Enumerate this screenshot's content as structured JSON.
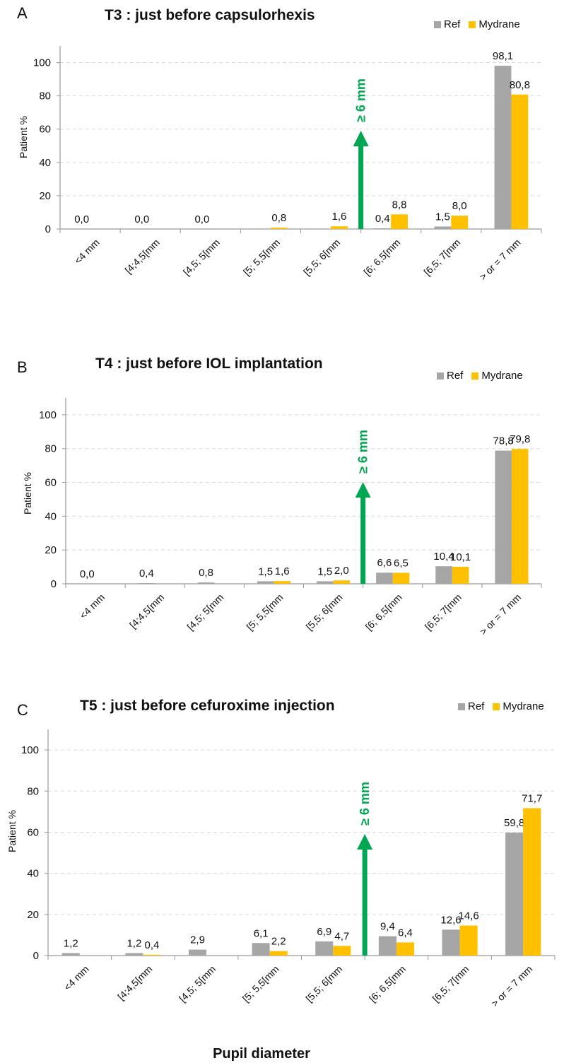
{
  "colors": {
    "ref": "#a6a6a6",
    "mydrane": "#ffc000",
    "arrow": "#00a651",
    "grid": "#d9d9d9",
    "axis": "#999999"
  },
  "legend": {
    "ref": "Ref",
    "mydrane": "Mydrane"
  },
  "ylabel": "Patient %",
  "xlabel": "Pupil diameter",
  "arrow_label": "≥ 6 mm",
  "chart_data": [
    {
      "type": "bar",
      "panel": "A",
      "title": "T3 : just before capsulorhexis",
      "categories": [
        "<4 mm",
        "[4;4,5[mm",
        "[4,5; 5[mm",
        "[5; 5,5[mm",
        "[5,5; 6[mm",
        "[6; 6,5[mm",
        "[6,5; 7[mm",
        "> or = 7 mm"
      ],
      "series": [
        {
          "name": "Ref",
          "values": [
            0.0,
            0.0,
            0.0,
            0.0,
            0.0,
            0.4,
            1.5,
            98.1
          ],
          "labels": [
            "0,0",
            "0,0",
            "0,0",
            "",
            "",
            "0,4",
            "1,5",
            "98,1"
          ]
        },
        {
          "name": "Mydrane",
          "values": [
            0.0,
            0.0,
            0.0,
            0.8,
            1.6,
            8.8,
            8.0,
            80.8
          ],
          "labels": [
            "",
            "",
            "",
            "0,8",
            "1,6",
            "8,8",
            "8,0",
            "80,8"
          ]
        }
      ],
      "yticks": [
        "0",
        "20",
        "40",
        "60",
        "80",
        "100"
      ],
      "ylim": [
        0,
        110
      ],
      "grid": true,
      "legend_position": "top-right"
    },
    {
      "type": "bar",
      "panel": "B",
      "title": "T4 : just before IOL implantation",
      "categories": [
        "<4 mm",
        "[4;4,5[mm",
        "[4,5; 5[mm",
        "[5; 5,5[mm",
        "[5,5; 6[mm",
        "[6; 6,5[mm",
        "[6,5; 7[mm",
        "> or = 7 mm"
      ],
      "series": [
        {
          "name": "Ref",
          "values": [
            0.0,
            0.4,
            0.8,
            1.5,
            1.5,
            6.6,
            10.4,
            78.8
          ],
          "labels": [
            "0,0",
            "0,4",
            "0,8",
            "1,5",
            "1,5",
            "6,6",
            "10,4",
            "78,8"
          ]
        },
        {
          "name": "Mydrane",
          "values": [
            0.0,
            0.0,
            0.0,
            1.6,
            2.0,
            6.5,
            10.1,
            79.8
          ],
          "labels": [
            "",
            "",
            "",
            "1,6",
            "2,0",
            "6,5",
            "10,1",
            "79,8"
          ]
        }
      ],
      "yticks": [
        "0",
        "20",
        "40",
        "60",
        "80",
        "100"
      ],
      "ylim": [
        0,
        110
      ],
      "grid": true,
      "legend_position": "top-right"
    },
    {
      "type": "bar",
      "panel": "C",
      "title": "T5 : just before cefuroxime injection",
      "categories": [
        "<4 mm",
        "[4;4,5[mm",
        "[4,5; 5[mm",
        "[5; 5,5[mm",
        "[5,5; 6[mm",
        "[6; 6,5[mm",
        "[6,5; 7[mm",
        "> or = 7 mm"
      ],
      "series": [
        {
          "name": "Ref",
          "values": [
            1.2,
            1.2,
            2.9,
            6.1,
            6.9,
            9.4,
            12.6,
            59.8
          ],
          "labels": [
            "1,2",
            "1,2",
            "2,9",
            "6,1",
            "6,9",
            "9,4",
            "12,6",
            "59,8"
          ]
        },
        {
          "name": "Mydrane",
          "values": [
            0.0,
            0.4,
            0.0,
            2.2,
            4.7,
            6.4,
            14.6,
            71.7
          ],
          "labels": [
            "",
            "0,4",
            "",
            "2,2",
            "4,7",
            "6,4",
            "14,6",
            "71,7"
          ]
        }
      ],
      "yticks": [
        "0",
        "20",
        "40",
        "60",
        "80",
        "100"
      ],
      "ylim": [
        0,
        110
      ],
      "grid": true,
      "legend_position": "top-right"
    }
  ]
}
